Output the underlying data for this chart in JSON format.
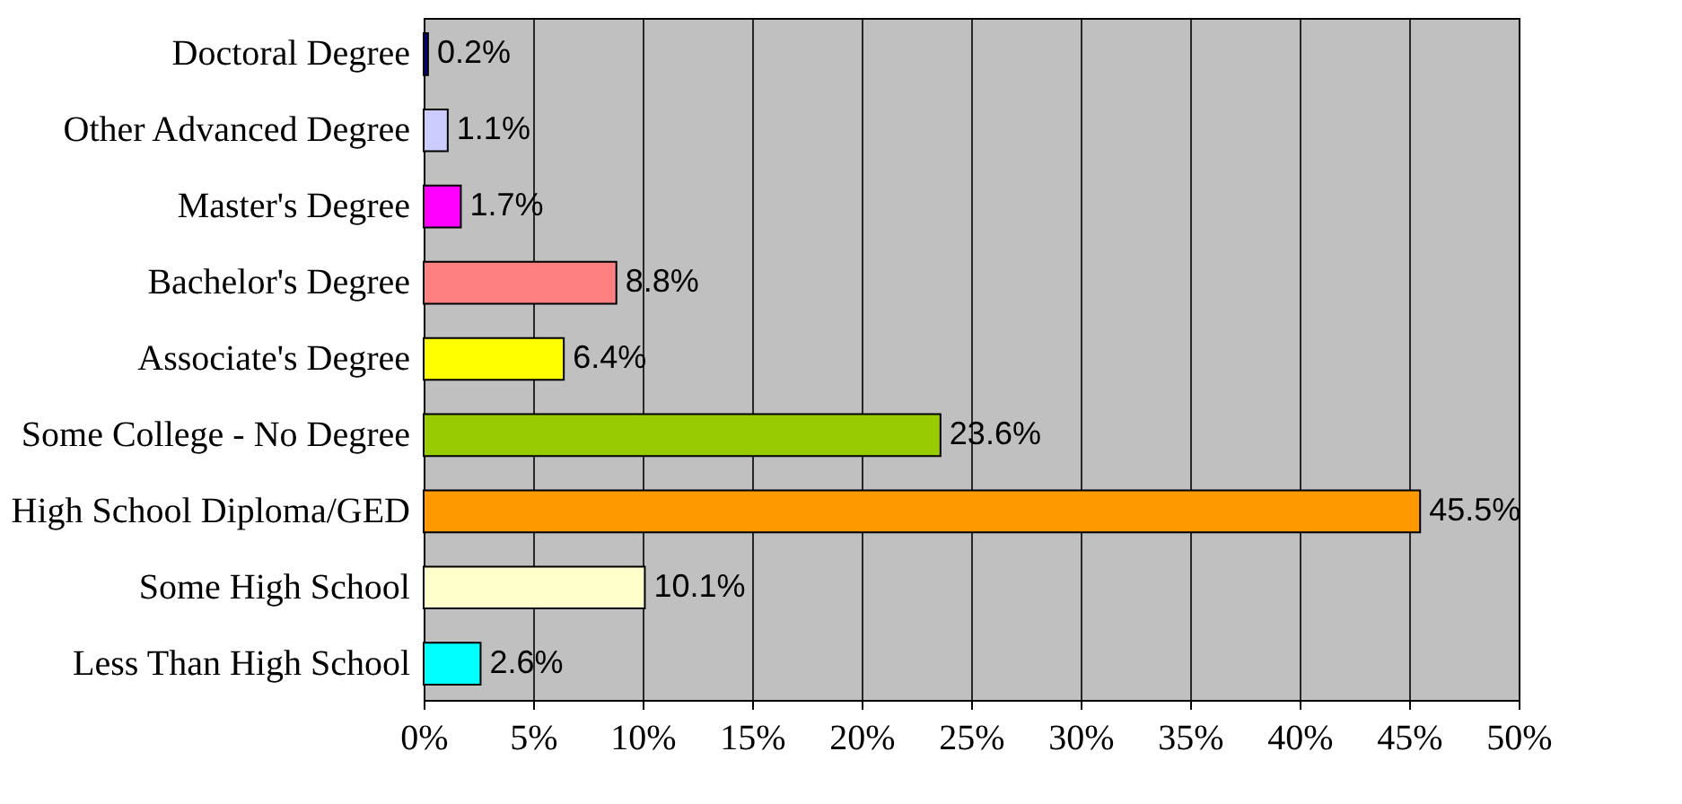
{
  "chart_data": {
    "type": "bar",
    "orientation": "horizontal",
    "categories": [
      "Doctoral Degree",
      "Other Advanced Degree",
      "Master's Degree",
      "Bachelor's Degree",
      "Associate's Degree",
      "Some College - No Degree",
      "High School Diploma/GED",
      "Some High School",
      "Less Than High School"
    ],
    "values": [
      0.2,
      1.1,
      1.7,
      8.8,
      6.4,
      23.6,
      45.5,
      10.1,
      2.6
    ],
    "colors": [
      "#000080",
      "#ccccff",
      "#ff00ff",
      "#ff8080",
      "#ffff00",
      "#99cc00",
      "#ff9900",
      "#ffffcc",
      "#00ffff"
    ],
    "value_labels": [
      "0.2%",
      "1.1%",
      "1.7%",
      "8.8%",
      "6.4%",
      "23.6%",
      "45.5%",
      "10.1%",
      "2.6%"
    ],
    "xlim": [
      0,
      50
    ],
    "xticks": [
      {
        "value": 0,
        "label": "0%"
      },
      {
        "value": 5,
        "label": "5%"
      },
      {
        "value": 10,
        "label": "10%"
      },
      {
        "value": 15,
        "label": "15%"
      },
      {
        "value": 20,
        "label": "20%"
      },
      {
        "value": 25,
        "label": "25%"
      },
      {
        "value": 30,
        "label": "30%"
      },
      {
        "value": 35,
        "label": "35%"
      },
      {
        "value": 40,
        "label": "40%"
      },
      {
        "value": 45,
        "label": "45%"
      },
      {
        "value": 50,
        "label": "50%"
      }
    ],
    "grid": "x"
  }
}
